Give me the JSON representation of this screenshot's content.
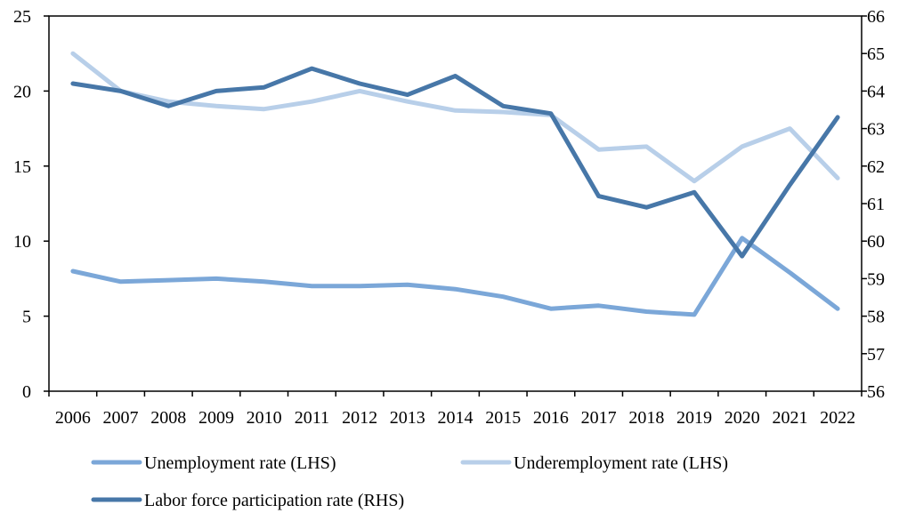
{
  "chart_data": {
    "type": "line",
    "title": "",
    "xlabel": "",
    "ylabel": "",
    "categories": [
      "2006",
      "2007",
      "2008",
      "2009",
      "2010",
      "2011",
      "2012",
      "2013",
      "2014",
      "2015",
      "2016",
      "2017",
      "2018",
      "2019",
      "2020",
      "2021",
      "2022"
    ],
    "y_left": {
      "ylim": [
        0,
        25
      ],
      "ticks": [
        "0",
        "5",
        "10",
        "15",
        "20",
        "25"
      ]
    },
    "y_right": {
      "ylim": [
        56,
        66
      ],
      "ticks": [
        "56",
        "57",
        "58",
        "59",
        "60",
        "61",
        "62",
        "63",
        "64",
        "65",
        "66"
      ]
    },
    "grid": false,
    "legend_position": "bottom",
    "series": [
      {
        "name": "Unemployment rate (LHS)",
        "axis": "left",
        "color": "#7ba7d8",
        "values": [
          8.0,
          7.3,
          7.4,
          7.5,
          7.3,
          7.0,
          7.0,
          7.1,
          6.8,
          6.3,
          5.5,
          5.7,
          5.3,
          5.1,
          10.2,
          7.9,
          5.5
        ]
      },
      {
        "name": "Underemployment rate (LHS)",
        "axis": "left",
        "color": "#b8cfe9",
        "values": [
          22.5,
          20.0,
          19.3,
          19.0,
          18.8,
          19.3,
          20.0,
          19.3,
          18.7,
          18.6,
          18.4,
          16.1,
          16.3,
          14.0,
          16.3,
          17.5,
          14.2
        ]
      },
      {
        "name": "Labor force participation rate (RHS)",
        "axis": "right",
        "color": "#4777a8",
        "values": [
          64.2,
          64.0,
          63.6,
          64.0,
          64.1,
          64.6,
          64.2,
          63.9,
          64.4,
          63.6,
          63.4,
          61.2,
          60.9,
          61.3,
          59.6,
          61.5,
          63.3
        ]
      }
    ]
  }
}
